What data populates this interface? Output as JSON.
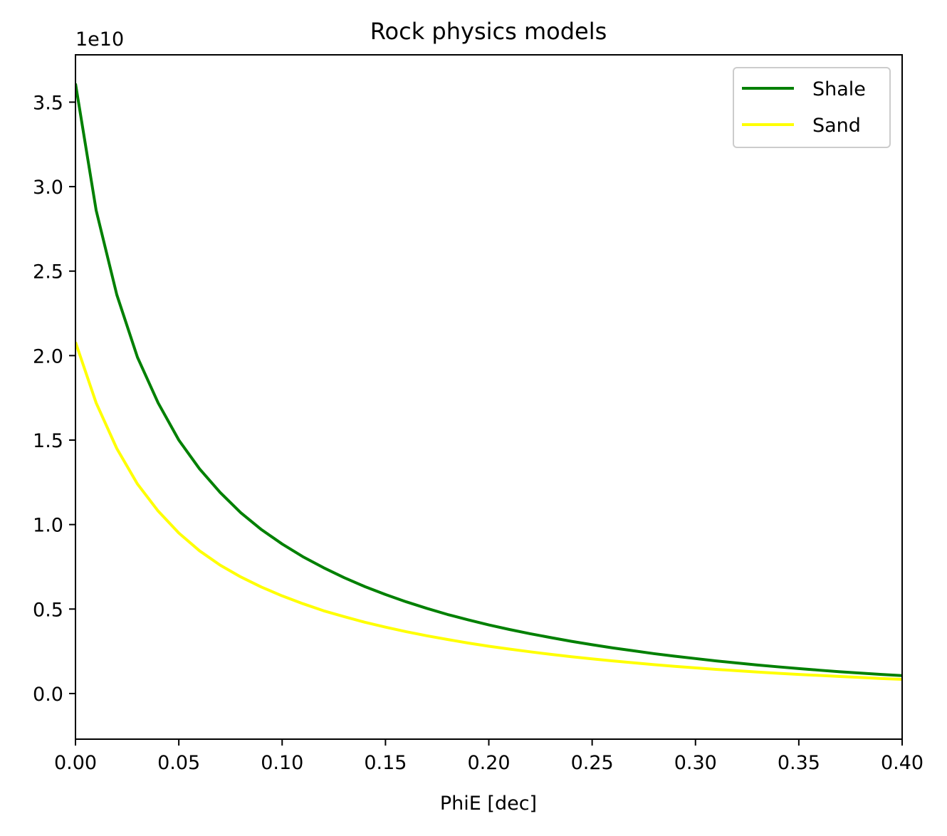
{
  "chart_data": {
    "type": "line",
    "title": "Rock physics models",
    "xlabel": "PhiE [dec]",
    "ylabel": "",
    "y_offset_label": "1e10",
    "xlim": [
      0.0,
      0.4
    ],
    "ylim": [
      -0.27,
      3.78
    ],
    "x_ticks": [
      0.0,
      0.05,
      0.1,
      0.15,
      0.2,
      0.25,
      0.3,
      0.35,
      0.4
    ],
    "x_tick_labels": [
      "0.00",
      "0.05",
      "0.10",
      "0.15",
      "0.20",
      "0.25",
      "0.30",
      "0.35",
      "0.40"
    ],
    "y_ticks": [
      0.0,
      0.5,
      1.0,
      1.5,
      2.0,
      2.5,
      3.0,
      3.5
    ],
    "y_tick_labels": [
      "0.0",
      "0.5",
      "1.0",
      "1.5",
      "2.0",
      "2.5",
      "3.0",
      "3.5"
    ],
    "grid": false,
    "legend_position": "top-right",
    "x": [
      0.0,
      0.01,
      0.02,
      0.03,
      0.04,
      0.05,
      0.06,
      0.07,
      0.08,
      0.09,
      0.1,
      0.11,
      0.12,
      0.13,
      0.14,
      0.15,
      0.16,
      0.17,
      0.18,
      0.19,
      0.2,
      0.21,
      0.22,
      0.23,
      0.24,
      0.25,
      0.26,
      0.27,
      0.28,
      0.29,
      0.3,
      0.31,
      0.32,
      0.33,
      0.34,
      0.35,
      0.36,
      0.37,
      0.38,
      0.39,
      0.4
    ],
    "series": [
      {
        "name": "Shale",
        "color": "#008000",
        "values": [
          3.61,
          2.86,
          2.36,
          1.99,
          1.72,
          1.5,
          1.33,
          1.19,
          1.07,
          0.97,
          0.885,
          0.81,
          0.745,
          0.686,
          0.633,
          0.586,
          0.543,
          0.504,
          0.468,
          0.436,
          0.406,
          0.379,
          0.354,
          0.331,
          0.309,
          0.289,
          0.27,
          0.253,
          0.236,
          0.221,
          0.207,
          0.193,
          0.181,
          0.169,
          0.158,
          0.148,
          0.138,
          0.129,
          0.121,
          0.113,
          0.106
        ]
      },
      {
        "name": "Sand",
        "color": "#ffff00",
        "values": [
          2.08,
          1.72,
          1.45,
          1.24,
          1.08,
          0.95,
          0.845,
          0.76,
          0.69,
          0.63,
          0.578,
          0.532,
          0.49,
          0.455,
          0.422,
          0.393,
          0.366,
          0.342,
          0.32,
          0.299,
          0.28,
          0.263,
          0.247,
          0.232,
          0.218,
          0.205,
          0.193,
          0.182,
          0.171,
          0.161,
          0.152,
          0.143,
          0.135,
          0.127,
          0.12,
          0.113,
          0.107,
          0.101,
          0.095,
          0.089,
          0.084
        ]
      }
    ]
  }
}
